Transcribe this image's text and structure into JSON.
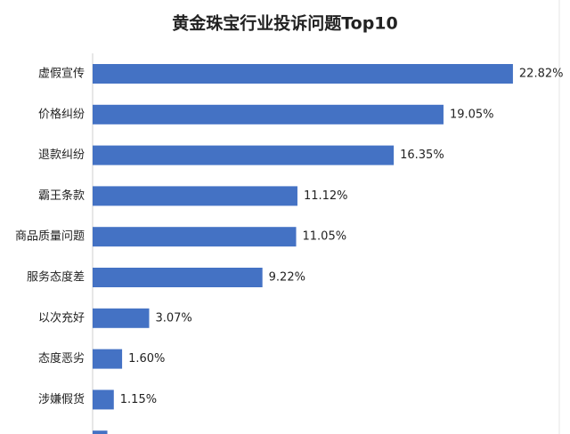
{
  "chart_data": {
    "type": "bar",
    "orientation": "horizontal",
    "title": "黄金珠宝行业投诉问题Top10",
    "categories": [
      "虚假宣传",
      "价格纠纷",
      "退款纠纷",
      "霸王条款",
      "商品质量问题",
      "服务态度差",
      "以次充好",
      "态度恶劣",
      "涉嫌假货",
      null
    ],
    "values": [
      22.82,
      19.05,
      16.35,
      11.12,
      11.05,
      9.22,
      3.07,
      1.6,
      1.15,
      0.8
    ],
    "value_labels": [
      "22.82%",
      "19.05%",
      "16.35%",
      "11.12%",
      "11.05%",
      "9.22%",
      "3.07%",
      "1.60%",
      "1.15%",
      null
    ],
    "color": "#4472c4"
  }
}
